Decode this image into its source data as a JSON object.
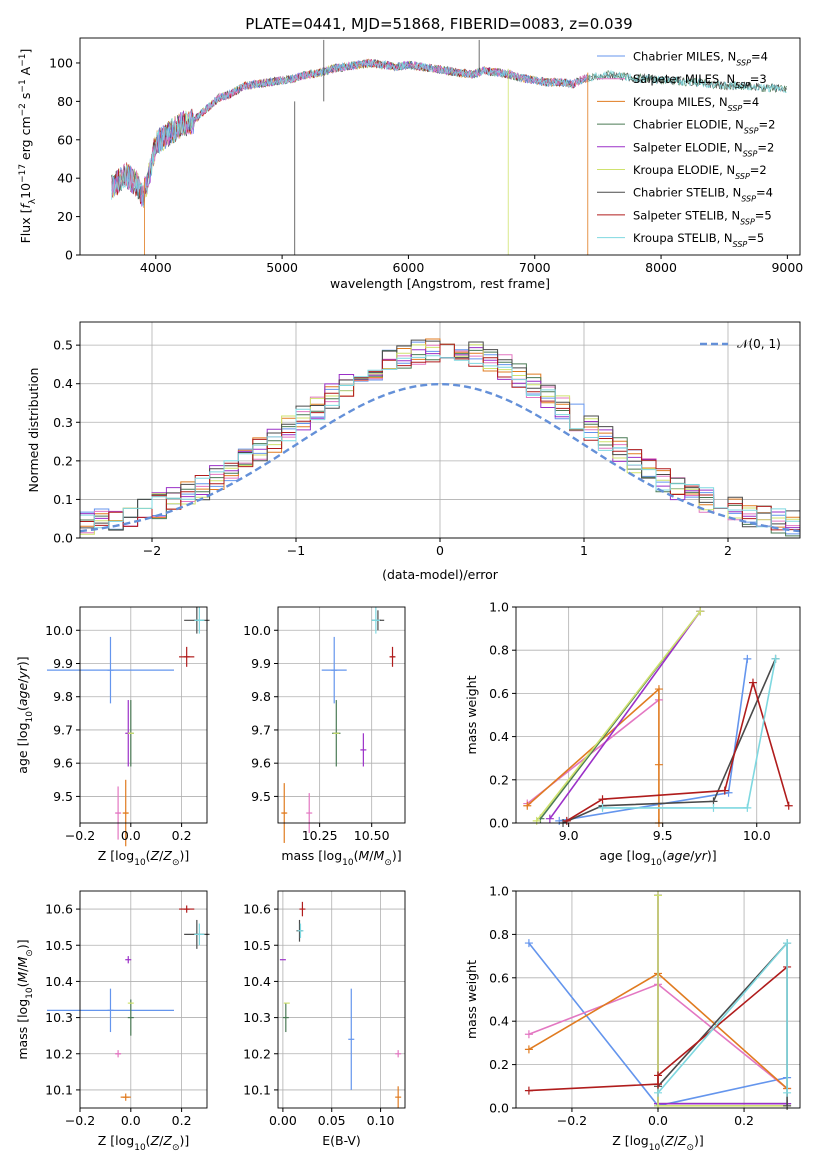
{
  "figure_title": "PLATE=0441, MJD=51868, FIBERID=0083, z=0.039",
  "model_colors": [
    "#6495ed",
    "#e377c2",
    "#e07b20",
    "#4a7a55",
    "#9b30c8",
    "#cfe26e",
    "#4a4a4a",
    "#b01c1c",
    "#7fd8e0"
  ],
  "chart_data": [
    {
      "id": "spectrum",
      "type": "line",
      "title": "PLATE=0441, MJD=51868, FIBERID=0083, z=0.039",
      "xlabel": "wavelength [Angstrom, rest frame]",
      "ylabel": "Flux [f_λ 10^-17 erg cm^-2 s^-1 A^-1]",
      "xlim": [
        3400,
        9100
      ],
      "ylim": [
        0,
        113
      ],
      "xticks": [
        4000,
        5000,
        6000,
        7000,
        8000,
        9000
      ],
      "yticks": [
        0,
        20,
        40,
        60,
        80,
        100
      ],
      "grid": false,
      "legend_position": "top-right",
      "legend": [
        "Chabrier MILES, N_SSP=4",
        "Salpeter MILES, N_SSP=3",
        "Kroupa MILES, N_SSP=4",
        "Chabrier ELODIE, N_SSP=2",
        "Salpeter ELODIE, N_SSP=2",
        "Kroupa ELODIE, N_SSP=2",
        "Chabrier STELIB, N_SSP=4",
        "Salpeter STELIB, N_SSP=5",
        "Kroupa STELIB, N_SSP=5"
      ],
      "series_x": [
        3650,
        3700,
        3760,
        3850,
        3900,
        3950,
        4000,
        4100,
        4200,
        4300,
        4400,
        4500,
        4600,
        4700,
        4800,
        4900,
        5000,
        5100,
        5200,
        5300,
        5400,
        5500,
        5600,
        5700,
        5800,
        5900,
        6000,
        6100,
        6200,
        6300,
        6400,
        6500,
        6600,
        6700,
        6800,
        6900,
        7000,
        7100,
        7200,
        7300,
        7400,
        7500,
        7600,
        7700,
        7800,
        7900,
        8000,
        8100,
        8200,
        8300,
        8400,
        8500,
        8600,
        8700,
        8800,
        8900,
        9000
      ],
      "series_y": [
        35,
        38,
        42,
        37,
        30,
        43,
        58,
        63,
        68,
        70,
        76,
        82,
        84,
        88,
        89,
        90,
        91,
        92,
        94,
        95,
        97,
        98,
        99,
        100,
        99,
        98,
        99,
        98,
        97,
        96,
        95,
        94,
        96,
        95,
        94,
        92,
        91,
        90,
        90,
        89,
        92,
        93,
        94,
        93,
        92,
        92,
        91,
        91,
        90,
        90,
        89,
        88,
        88,
        88,
        87,
        87,
        86
      ],
      "features": [
        {
          "model": 6,
          "x": 5100,
          "ymin": 0,
          "ymax": 80
        },
        {
          "model": 6,
          "x": 5330,
          "ymin": 80,
          "ymax": 112
        },
        {
          "model": 2,
          "x": 3910,
          "ymin": 0,
          "ymax": 40
        },
        {
          "model": 5,
          "x": 6790,
          "ymin": 0,
          "ymax": 97
        },
        {
          "model": 2,
          "x": 7420,
          "ymin": 0,
          "ymax": 95
        },
        {
          "model": 6,
          "x": 6560,
          "ymin": 95,
          "ymax": 112
        }
      ]
    },
    {
      "id": "residuals",
      "type": "step",
      "xlabel": "(data-model)/error",
      "ylabel": "Normed distribution",
      "xlim": [
        -2.5,
        2.5
      ],
      "ylim": [
        0,
        0.56
      ],
      "xticks": [
        -2,
        -1,
        0,
        1,
        2
      ],
      "yticks": [
        0.0,
        0.1,
        0.2,
        0.3,
        0.4,
        0.5
      ],
      "grid": true,
      "legend_position": "top-right",
      "legend": [
        "𝒩(0, 1)"
      ],
      "bin_width": 0.1,
      "normal_curve": {
        "mean": 0,
        "sigma": 1,
        "color": "#6490d8"
      }
    },
    {
      "id": "age-vs-Z",
      "type": "errorbar",
      "xlabel": "Z [log10(Z/Z⊙)]",
      "ylabel": "age [log10(age/yr)]",
      "xlim": [
        -0.2,
        0.3
      ],
      "ylim": [
        9.42,
        10.07
      ],
      "xticks": [
        -0.2,
        0.0,
        0.2
      ],
      "yticks": [
        9.5,
        9.6,
        9.7,
        9.8,
        9.9,
        10.0
      ],
      "grid": true,
      "points": [
        {
          "model": 0,
          "x": -0.08,
          "y": 9.88,
          "xerr": 0.25,
          "yerr": 0.1
        },
        {
          "model": 1,
          "x": -0.05,
          "y": 9.45,
          "xerr": 0.01,
          "yerr": 0.08
        },
        {
          "model": 2,
          "x": -0.02,
          "y": 9.45,
          "xerr": 0.01,
          "yerr": 0.1
        },
        {
          "model": 3,
          "x": 0.0,
          "y": 9.69,
          "xerr": 0.0,
          "yerr": 0.1
        },
        {
          "model": 4,
          "x": -0.01,
          "y": 9.69,
          "xerr": 0.0,
          "yerr": 0.1
        },
        {
          "model": 5,
          "x": 0.0,
          "y": 9.69,
          "xerr": 0.005,
          "yerr": 0.0
        },
        {
          "model": 6,
          "x": 0.26,
          "y": 10.03,
          "xerr": 0.05,
          "yerr": 0.04
        },
        {
          "model": 7,
          "x": 0.22,
          "y": 9.92,
          "xerr": 0.03,
          "yerr": 0.03
        },
        {
          "model": 8,
          "x": 0.27,
          "y": 10.03,
          "xerr": 0.02,
          "yerr": 0.04
        }
      ]
    },
    {
      "id": "age-vs-mass",
      "type": "errorbar",
      "xlabel": "mass [log10(M/M⊙)]",
      "ylabel": "",
      "xlim": [
        10.05,
        10.66
      ],
      "ylim": [
        9.42,
        10.07
      ],
      "xticks": [
        10.25,
        10.5
      ],
      "yticks": [
        9.5,
        9.6,
        9.7,
        9.8,
        9.9,
        10.0
      ],
      "grid": true,
      "points": [
        {
          "model": 0,
          "x": 10.32,
          "y": 9.88,
          "xerr": 0.06,
          "yerr": 0.1
        },
        {
          "model": 1,
          "x": 10.2,
          "y": 9.45,
          "xerr": 0.0,
          "yerr": 0.06
        },
        {
          "model": 2,
          "x": 10.08,
          "y": 9.45,
          "xerr": 0.01,
          "yerr": 0.09
        },
        {
          "model": 3,
          "x": 10.33,
          "y": 9.69,
          "xerr": 0.02,
          "yerr": 0.1
        },
        {
          "model": 4,
          "x": 10.46,
          "y": 9.64,
          "xerr": 0.0,
          "yerr": 0.05
        },
        {
          "model": 5,
          "x": 10.33,
          "y": 9.69,
          "xerr": 0.0,
          "yerr": 0.0
        },
        {
          "model": 6,
          "x": 10.53,
          "y": 10.03,
          "xerr": 0.03,
          "yerr": 0.03
        },
        {
          "model": 7,
          "x": 10.6,
          "y": 9.92,
          "xerr": 0.01,
          "yerr": 0.03
        },
        {
          "model": 8,
          "x": 10.52,
          "y": 10.03,
          "xerr": 0.02,
          "yerr": 0.04
        }
      ]
    },
    {
      "id": "massweight-vs-age",
      "type": "line",
      "xlabel": "age [log10(age/yr)]",
      "ylabel": "mass weight",
      "xlim": [
        8.72,
        10.23
      ],
      "ylim": [
        0,
        1
      ],
      "xticks": [
        9.0,
        9.5,
        10.0
      ],
      "yticks": [
        0.0,
        0.2,
        0.4,
        0.6,
        0.8,
        1.0
      ],
      "grid": true,
      "series": [
        {
          "model": 0,
          "x": [
            8.95,
            9.85,
            9.95
          ],
          "y": [
            0.01,
            0.14,
            0.76
          ]
        },
        {
          "model": 1,
          "x": [
            8.78,
            9.48
          ],
          "y": [
            0.09,
            0.57
          ]
        },
        {
          "model": 2,
          "x": [
            8.78,
            9.48,
            9.48,
            9.48
          ],
          "y": [
            0.08,
            0.62,
            0.27,
            0.0
          ]
        },
        {
          "model": 3,
          "x": [
            8.85,
            9.7
          ],
          "y": [
            0.02,
            0.98
          ]
        },
        {
          "model": 4,
          "x": [
            8.9,
            9.7
          ],
          "y": [
            0.02,
            0.98
          ]
        },
        {
          "model": 5,
          "x": [
            8.83,
            9.7
          ],
          "y": [
            0.01,
            0.98
          ]
        },
        {
          "model": 6,
          "x": [
            8.97,
            9.18,
            9.77,
            10.1
          ],
          "y": [
            0.0,
            0.08,
            0.1,
            0.76
          ]
        },
        {
          "model": 7,
          "x": [
            8.99,
            9.18,
            9.83,
            9.98,
            10.17
          ],
          "y": [
            0.01,
            0.11,
            0.15,
            0.65,
            0.08
          ]
        },
        {
          "model": 8,
          "x": [
            9.18,
            9.77,
            9.95,
            10.1
          ],
          "y": [
            0.07,
            0.07,
            0.07,
            0.76
          ]
        }
      ]
    },
    {
      "id": "mass-vs-Z",
      "type": "errorbar",
      "xlabel": "Z [log10(Z/Z⊙)]",
      "ylabel": "mass [log10(M/M⊙)]",
      "xlim": [
        -0.2,
        0.3
      ],
      "ylim": [
        10.05,
        10.65
      ],
      "xticks": [
        -0.2,
        0.0,
        0.2
      ],
      "yticks": [
        10.1,
        10.2,
        10.3,
        10.4,
        10.5,
        10.6
      ],
      "grid": true,
      "points": [
        {
          "model": 0,
          "x": -0.08,
          "y": 10.32,
          "xerr": 0.25,
          "yerr": 0.06
        },
        {
          "model": 1,
          "x": -0.05,
          "y": 10.2,
          "xerr": 0.01,
          "yerr": 0.01
        },
        {
          "model": 2,
          "x": -0.02,
          "y": 10.08,
          "xerr": 0.02,
          "yerr": 0.01
        },
        {
          "model": 3,
          "x": 0.0,
          "y": 10.3,
          "xerr": 0.0,
          "yerr": 0.05
        },
        {
          "model": 4,
          "x": -0.01,
          "y": 10.46,
          "xerr": 0.0,
          "yerr": 0.01
        },
        {
          "model": 5,
          "x": 0.0,
          "y": 10.34,
          "xerr": 0.005,
          "yerr": 0.0
        },
        {
          "model": 6,
          "x": 0.26,
          "y": 10.53,
          "xerr": 0.05,
          "yerr": 0.04
        },
        {
          "model": 7,
          "x": 0.22,
          "y": 10.6,
          "xerr": 0.03,
          "yerr": 0.01
        },
        {
          "model": 8,
          "x": 0.27,
          "y": 10.53,
          "xerr": 0.02,
          "yerr": 0.03
        }
      ]
    },
    {
      "id": "mass-vs-ebv",
      "type": "errorbar",
      "xlabel": "E(B-V)",
      "ylabel": "",
      "xlim": [
        -0.005,
        0.125
      ],
      "ylim": [
        10.05,
        10.65
      ],
      "xticks": [
        0.0,
        0.05,
        0.1
      ],
      "yticks": [
        10.1,
        10.2,
        10.3,
        10.4,
        10.5,
        10.6
      ],
      "grid": true,
      "points": [
        {
          "model": 0,
          "x": 0.07,
          "y": 10.24,
          "xerr": 0.0,
          "yerr": 0.14
        },
        {
          "model": 1,
          "x": 0.118,
          "y": 10.2,
          "xerr": 0.0,
          "yerr": 0.01
        },
        {
          "model": 2,
          "x": 0.118,
          "y": 10.08,
          "xerr": 0.0,
          "yerr": 0.03
        },
        {
          "model": 3,
          "x": 0.003,
          "y": 10.3,
          "xerr": 0.0,
          "yerr": 0.04
        },
        {
          "model": 4,
          "x": 0.0,
          "y": 10.46,
          "xerr": 0.0,
          "yerr": 0.0
        },
        {
          "model": 5,
          "x": 0.004,
          "y": 10.34,
          "xerr": 0.0,
          "yerr": 0.0
        },
        {
          "model": 6,
          "x": 0.017,
          "y": 10.54,
          "xerr": 0.0,
          "yerr": 0.03
        },
        {
          "model": 7,
          "x": 0.02,
          "y": 10.6,
          "xerr": 0.0,
          "yerr": 0.02
        },
        {
          "model": 8,
          "x": 0.018,
          "y": 10.54,
          "xerr": 0.0,
          "yerr": 0.02
        }
      ]
    },
    {
      "id": "massweight-vs-Z",
      "type": "line",
      "xlabel": "Z [log10(Z/Z⊙)]",
      "ylabel": "mass weight",
      "xlim": [
        -0.33,
        0.33
      ],
      "ylim": [
        0,
        1
      ],
      "xticks": [
        -0.2,
        0.0,
        0.2
      ],
      "yticks": [
        0.0,
        0.2,
        0.4,
        0.6,
        0.8,
        1.0
      ],
      "grid": true,
      "series": [
        {
          "model": 0,
          "x": [
            -0.3,
            0.0,
            0.3
          ],
          "y": [
            0.76,
            0.01,
            0.14
          ]
        },
        {
          "model": 1,
          "x": [
            -0.3,
            0.0,
            0.3
          ],
          "y": [
            0.34,
            0.57,
            0.09
          ]
        },
        {
          "model": 2,
          "x": [
            -0.3,
            0.0,
            0.3
          ],
          "y": [
            0.27,
            0.62,
            0.09
          ]
        },
        {
          "model": 3,
          "x": [
            0.0,
            0.0,
            0.3
          ],
          "y": [
            0.98,
            0.02,
            0.02
          ]
        },
        {
          "model": 4,
          "x": [
            0.0,
            0.0,
            0.3
          ],
          "y": [
            0.98,
            0.02,
            0.02
          ]
        },
        {
          "model": 5,
          "x": [
            0.0,
            0.0,
            0.3
          ],
          "y": [
            0.98,
            0.01,
            0.01
          ]
        },
        {
          "model": 6,
          "x": [
            0.0,
            0.3,
            0.3
          ],
          "y": [
            0.1,
            0.76,
            0.01
          ]
        },
        {
          "model": 7,
          "x": [
            -0.3,
            0.0,
            0.0,
            0.3
          ],
          "y": [
            0.08,
            0.11,
            0.15,
            0.65
          ]
        },
        {
          "model": 8,
          "x": [
            0.0,
            0.3,
            0.3
          ],
          "y": [
            0.07,
            0.76,
            0.07
          ]
        }
      ]
    }
  ]
}
